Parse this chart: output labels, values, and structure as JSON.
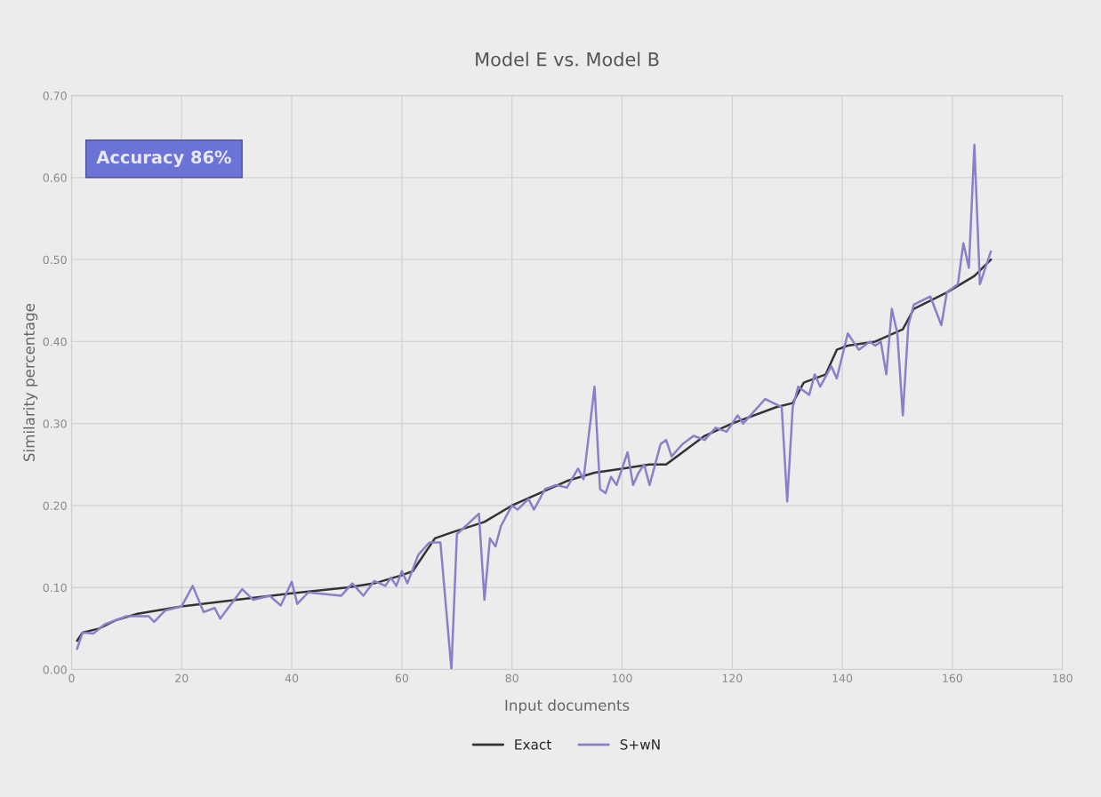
{
  "chart_data": {
    "type": "line",
    "title": "Model E vs. Model B",
    "xlabel": "Input documents",
    "ylabel": "Similarity percentage",
    "annotations": [
      "Accuracy 86%"
    ],
    "series": [
      {
        "name": "Exact",
        "color": "#333333",
        "x": [
          1,
          2,
          5,
          8,
          12,
          20,
          30,
          40,
          50,
          55,
          60,
          62,
          64,
          66,
          69,
          75,
          80,
          85,
          90,
          95,
          100,
          105,
          108,
          115,
          120,
          128,
          131,
          133,
          137,
          139,
          141,
          146,
          151,
          153,
          159,
          164,
          167
        ],
        "values": [
          0.035,
          0.045,
          0.05,
          0.06,
          0.068,
          0.077,
          0.085,
          0.093,
          0.1,
          0.105,
          0.115,
          0.12,
          0.14,
          0.16,
          0.167,
          0.18,
          0.2,
          0.215,
          0.23,
          0.24,
          0.245,
          0.25,
          0.25,
          0.285,
          0.3,
          0.32,
          0.325,
          0.35,
          0.36,
          0.39,
          0.395,
          0.4,
          0.415,
          0.44,
          0.46,
          0.48,
          0.5
        ]
      },
      {
        "name": "S+wN",
        "color": "#8b7fc8",
        "x": [
          1,
          2,
          4,
          6,
          10,
          14,
          15,
          17,
          20,
          22,
          24,
          26,
          27,
          29,
          31,
          33,
          36,
          38,
          40,
          41,
          43,
          49,
          51,
          53,
          55,
          57,
          58,
          59,
          60,
          61,
          63,
          65,
          67,
          69,
          70,
          74,
          75,
          76,
          77,
          78,
          80,
          81,
          83,
          84,
          86,
          88,
          90,
          92,
          93,
          95,
          96,
          97,
          98,
          99,
          101,
          102,
          103,
          104,
          105,
          107,
          108,
          109,
          111,
          113,
          115,
          117,
          119,
          121,
          122,
          124,
          126,
          129,
          130,
          131,
          132,
          134,
          135,
          136,
          138,
          139,
          141,
          143,
          145,
          146,
          147,
          148,
          149,
          150,
          151,
          152,
          153,
          156,
          158,
          159,
          161,
          162,
          163,
          164,
          165,
          166,
          167
        ],
        "values": [
          0.025,
          0.045,
          0.044,
          0.055,
          0.065,
          0.065,
          0.058,
          0.072,
          0.077,
          0.102,
          0.07,
          0.075,
          0.062,
          0.08,
          0.098,
          0.085,
          0.09,
          0.078,
          0.107,
          0.08,
          0.094,
          0.09,
          0.105,
          0.09,
          0.108,
          0.102,
          0.112,
          0.102,
          0.12,
          0.105,
          0.14,
          0.155,
          0.155,
          0.0,
          0.165,
          0.19,
          0.085,
          0.16,
          0.15,
          0.175,
          0.2,
          0.195,
          0.208,
          0.195,
          0.22,
          0.225,
          0.222,
          0.245,
          0.232,
          0.345,
          0.22,
          0.215,
          0.235,
          0.225,
          0.265,
          0.225,
          0.24,
          0.25,
          0.225,
          0.275,
          0.28,
          0.26,
          0.275,
          0.285,
          0.28,
          0.295,
          0.29,
          0.31,
          0.3,
          0.315,
          0.33,
          0.32,
          0.205,
          0.32,
          0.345,
          0.335,
          0.36,
          0.345,
          0.37,
          0.355,
          0.41,
          0.39,
          0.4,
          0.395,
          0.4,
          0.36,
          0.44,
          0.41,
          0.31,
          0.42,
          0.445,
          0.455,
          0.42,
          0.46,
          0.47,
          0.52,
          0.49,
          0.64,
          0.47,
          0.49,
          0.51
        ]
      }
    ],
    "xlim": [
      0,
      180
    ],
    "xticks": [
      0,
      20,
      40,
      60,
      80,
      100,
      120,
      140,
      160,
      180
    ],
    "ylim": [
      0,
      0.7
    ],
    "yticks": [
      {
        "value": 0,
        "label": "0.00"
      },
      {
        "value": 0.1,
        "label": "0.10"
      },
      {
        "value": 0.2,
        "label": "0.20"
      },
      {
        "value": 0.3,
        "label": "0.30"
      },
      {
        "value": 0.4,
        "label": "0.40"
      },
      {
        "value": 0.5,
        "label": "0.50"
      },
      {
        "value": 0.6,
        "label": "0.60"
      },
      {
        "value": 0.7,
        "label": "0.70"
      }
    ],
    "grid": true,
    "legend": "bottom",
    "line_style": "solid",
    "marker": "none"
  }
}
